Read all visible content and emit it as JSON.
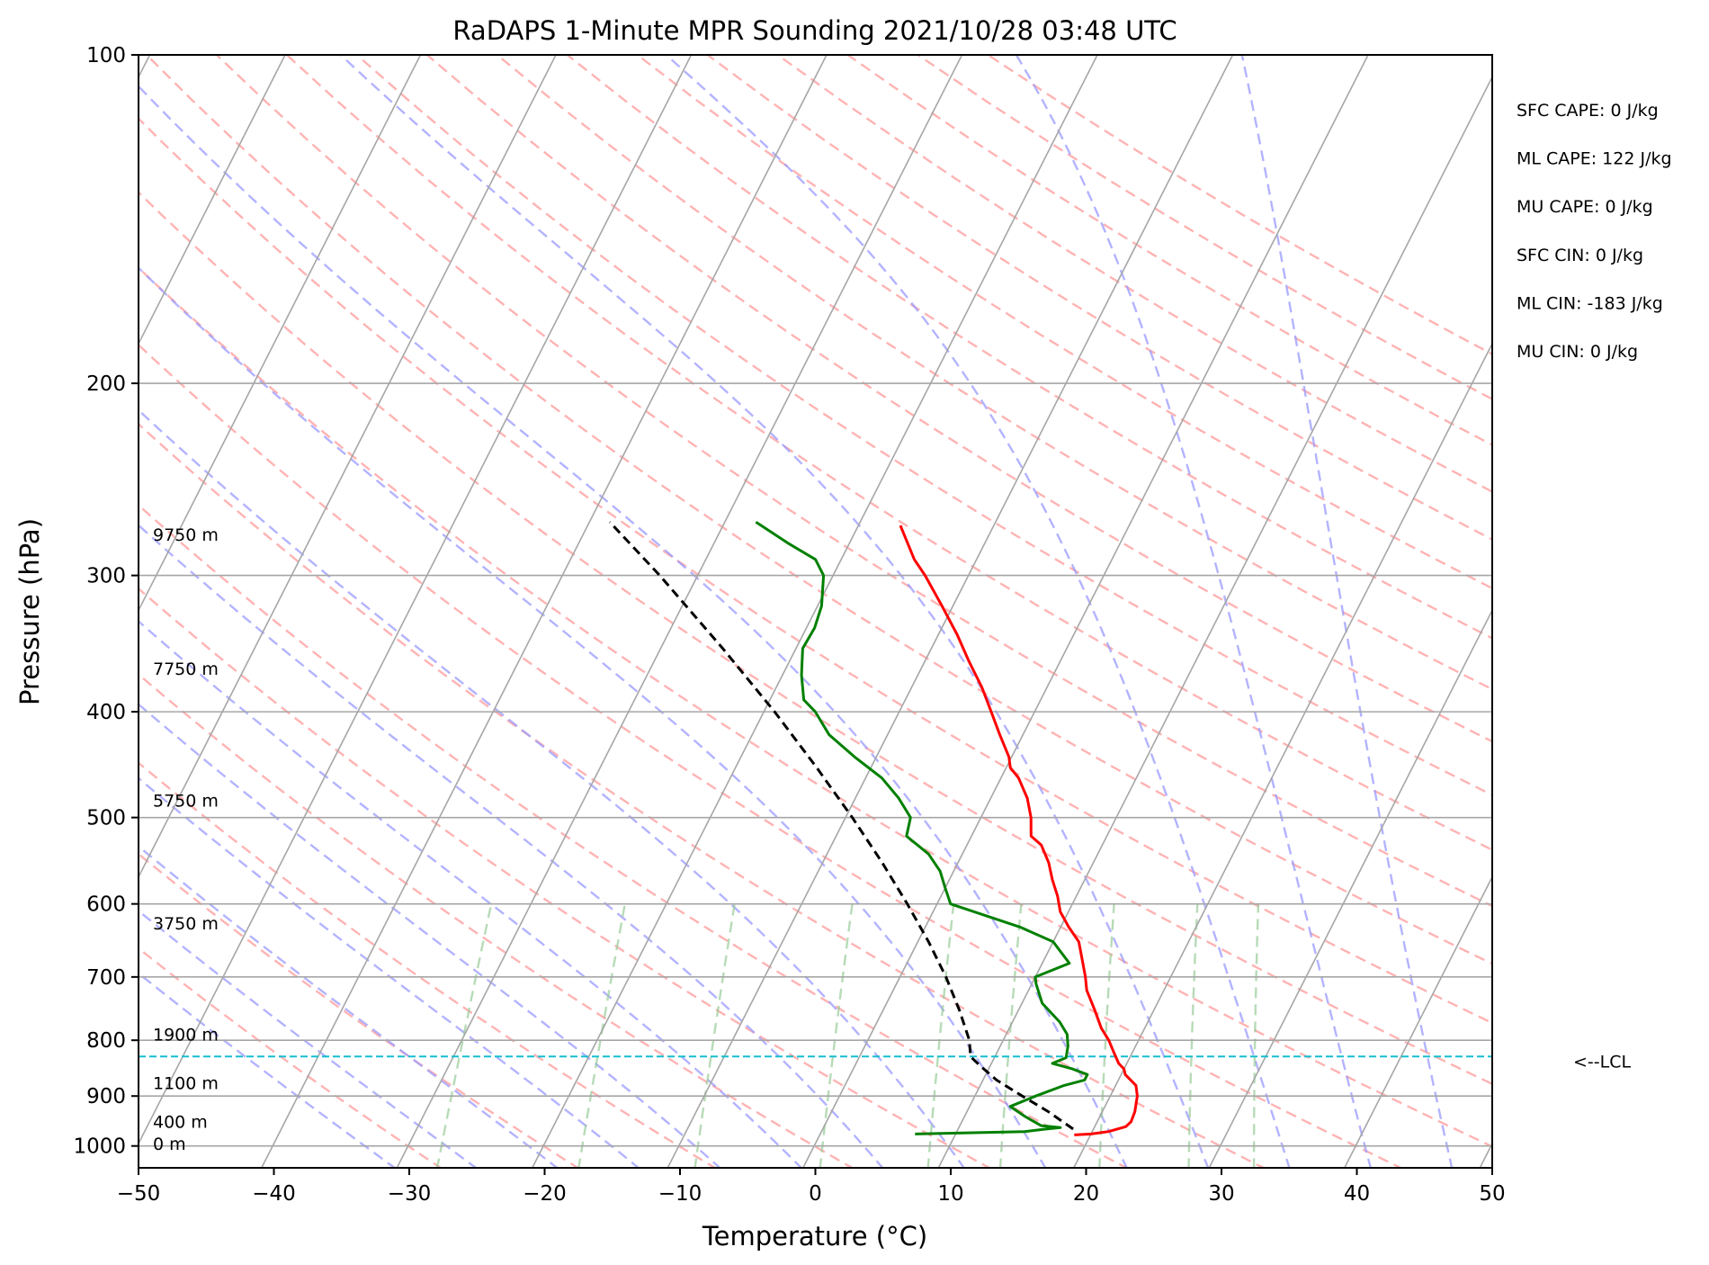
{
  "chart_data": {
    "type": "line",
    "title": "RaDAPS 1-Minute MPR Sounding 2021/10/28 03:48 UTC",
    "xlabel": "Temperature (°C)",
    "ylabel": "Pressure (hPa)",
    "xlim": [
      -50,
      50
    ],
    "ylim": [
      1050,
      100
    ],
    "y_scale": "log",
    "grid": true,
    "x_ticks": [
      -50,
      -40,
      -30,
      -20,
      -10,
      0,
      10,
      20,
      30,
      40,
      50
    ],
    "x_tick_labels": [
      "−50",
      "−40",
      "−30",
      "−20",
      "−10",
      "0",
      "10",
      "20",
      "30",
      "40",
      "50"
    ],
    "y_ticks": [
      100,
      200,
      300,
      400,
      500,
      600,
      700,
      800,
      900,
      1000
    ],
    "y_tick_labels": [
      "100",
      "200",
      "300",
      "400",
      "500",
      "600",
      "700",
      "800",
      "900",
      "1000"
    ],
    "altitude_labels": [
      {
        "pressure": 275,
        "text": "9750 m"
      },
      {
        "pressure": 365,
        "text": "7750 m"
      },
      {
        "pressure": 482,
        "text": "5750 m"
      },
      {
        "pressure": 625,
        "text": "3750 m"
      },
      {
        "pressure": 790,
        "text": "1900 m"
      },
      {
        "pressure": 875,
        "text": "1100 m"
      },
      {
        "pressure": 950,
        "text": "400 m"
      },
      {
        "pressure": 995,
        "text": "0 m"
      }
    ],
    "stats": [
      "SFC CAPE: 0 J/kg",
      "ML CAPE: 122 J/kg",
      "MU CAPE: 0 J/kg",
      "SFC CIN: 0 J/kg",
      "ML CIN: -183 J/kg",
      "MU CIN: 0 J/kg"
    ],
    "lcl": {
      "pressure": 828,
      "label": "<--LCL",
      "color": "#17becf"
    },
    "series": [
      {
        "kind": "temperature",
        "color": "#ff0000",
        "points": [
          [
            977,
            18.8
          ],
          [
            975,
            20
          ],
          [
            970,
            21.2
          ],
          [
            960,
            22.3
          ],
          [
            950,
            22.5
          ],
          [
            930,
            22.4
          ],
          [
            900,
            22
          ],
          [
            880,
            21.5
          ],
          [
            860,
            20.3
          ],
          [
            850,
            20
          ],
          [
            840,
            19.4
          ],
          [
            820,
            18.6
          ],
          [
            800,
            17.8
          ],
          [
            780,
            16.8
          ],
          [
            750,
            15.6
          ],
          [
            720,
            14.3
          ],
          [
            700,
            13.7
          ],
          [
            680,
            13
          ],
          [
            650,
            11.9
          ],
          [
            630,
            10.6
          ],
          [
            610,
            9.4
          ],
          [
            590,
            8.6
          ],
          [
            570,
            7.6
          ],
          [
            550,
            6.7
          ],
          [
            530,
            5.5
          ],
          [
            520,
            4.4
          ],
          [
            500,
            3.7
          ],
          [
            480,
            2.7
          ],
          [
            460,
            1.3
          ],
          [
            450,
            0.3
          ],
          [
            440,
            -0.2
          ],
          [
            420,
            -1.7
          ],
          [
            400,
            -3.2
          ],
          [
            380,
            -4.8
          ],
          [
            360,
            -6.7
          ],
          [
            340,
            -8.6
          ],
          [
            320,
            -10.8
          ],
          [
            300,
            -13.2
          ],
          [
            290,
            -14.6
          ],
          [
            270,
            -16.9
          ]
        ]
      },
      {
        "kind": "dewpoint",
        "color": "#008000",
        "points": [
          [
            975,
            7
          ],
          [
            970,
            15
          ],
          [
            965,
            16.5
          ],
          [
            962,
            17.5
          ],
          [
            958,
            16
          ],
          [
            940,
            14.5
          ],
          [
            920,
            13
          ],
          [
            900,
            14.5
          ],
          [
            880,
            16.2
          ],
          [
            870,
            17.5
          ],
          [
            860,
            17.5
          ],
          [
            850,
            16.2
          ],
          [
            840,
            14.5
          ],
          [
            830,
            15.3
          ],
          [
            810,
            15
          ],
          [
            790,
            14.5
          ],
          [
            770,
            13.5
          ],
          [
            740,
            11.5
          ],
          [
            710,
            10.3
          ],
          [
            700,
            10
          ],
          [
            680,
            12
          ],
          [
            650,
            10
          ],
          [
            630,
            7
          ],
          [
            600,
            1
          ],
          [
            580,
            0
          ],
          [
            560,
            -1
          ],
          [
            540,
            -2.5
          ],
          [
            520,
            -4.8
          ],
          [
            500,
            -5.2
          ],
          [
            480,
            -6.8
          ],
          [
            460,
            -8.8
          ],
          [
            440,
            -11.6
          ],
          [
            420,
            -14.3
          ],
          [
            400,
            -16.2
          ],
          [
            390,
            -17.5
          ],
          [
            370,
            -18.6
          ],
          [
            350,
            -19.5
          ],
          [
            335,
            -19.4
          ],
          [
            320,
            -19.7
          ],
          [
            300,
            -20.7
          ],
          [
            290,
            -21.9
          ],
          [
            280,
            -24.6
          ],
          [
            268,
            -27.7
          ]
        ]
      },
      {
        "kind": "parcel",
        "color": "#000000",
        "dashed": true,
        "points": [
          [
            965,
            18.5
          ],
          [
            930,
            16
          ],
          [
            900,
            13.5
          ],
          [
            870,
            11
          ],
          [
            845,
            9.3
          ],
          [
            828,
            8.2
          ],
          [
            800,
            7.5
          ],
          [
            750,
            5.6
          ],
          [
            700,
            3.4
          ],
          [
            650,
            0.8
          ],
          [
            600,
            -2.2
          ],
          [
            550,
            -5.6
          ],
          [
            500,
            -9.5
          ],
          [
            450,
            -14
          ],
          [
            400,
            -19.2
          ],
          [
            350,
            -25.4
          ],
          [
            300,
            -32.8
          ],
          [
            268,
            -38.5
          ]
        ]
      }
    ],
    "dry_adiabat_colors": "#ff9999",
    "moist_adiabat_colors": "#9999ff",
    "mixing_ratio_colors": "#99cc99"
  }
}
